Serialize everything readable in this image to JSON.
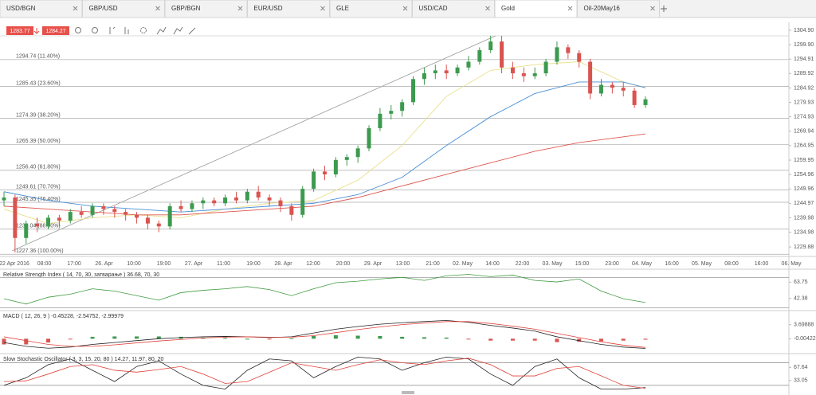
{
  "tabs": [
    "USD/BGN",
    "GBP/USD",
    "GBP/BGN",
    "EUR/USD",
    "GLE",
    "USD/CAD",
    "Gold",
    "Oil-20May16"
  ],
  "active_tab": 6,
  "toolbar": {
    "sell_price": "1283.77",
    "buy_price": "1284.27"
  },
  "price_chart": {
    "ylim": [
      1226.6,
      1307.1
    ],
    "yticks": [
      {
        "value": 1304.9,
        "label": "1304.90"
      },
      {
        "value": 1299.9,
        "label": "1299.90"
      },
      1294.91,
      1289.92,
      1284.92,
      1279.93,
      1274.93,
      1269.94,
      1264.95,
      1259.95,
      1254.96,
      1249.96,
      1244.97,
      1239.98,
      1234.98,
      1229.88
    ],
    "fib_levels": [
      {
        "value": 1294.74,
        "label": "1294.74 (11.40%)"
      },
      {
        "value": 1285.43,
        "label": "1285.43 (23.60%)"
      },
      {
        "value": 1274.39,
        "label": "1274.39 (38.20%)"
      },
      {
        "value": 1265.39,
        "label": "1265.39 (50.00%)"
      },
      {
        "value": 1256.4,
        "label": "1256.40 (61.80%)"
      },
      {
        "value": 1249.61,
        "label": "1249.61 (70.70%)"
      },
      {
        "value": 1245.35,
        "label": "1245.35 (76.40%)"
      },
      {
        "value": 1236.04,
        "label": "1236.04 (88.60%)"
      },
      {
        "value": 1227.36,
        "label": "1227.36 (100.00%)"
      }
    ],
    "up_color": "#3c9a4e",
    "down_color": "#d9534f",
    "candles": [
      [
        1246,
        1249,
        1244,
        1247
      ],
      [
        1247,
        1248,
        1228,
        1233
      ],
      [
        1233,
        1239,
        1231,
        1238
      ],
      [
        1238,
        1240,
        1235,
        1237
      ],
      [
        1237,
        1241,
        1236,
        1240
      ],
      [
        1240,
        1241,
        1237,
        1239
      ],
      [
        1239,
        1243,
        1238,
        1242
      ],
      [
        1242,
        1244,
        1240,
        1241
      ],
      [
        1241,
        1245,
        1240,
        1244
      ],
      [
        1244,
        1245,
        1241,
        1243
      ],
      [
        1243,
        1244,
        1240,
        1242
      ],
      [
        1242,
        1243,
        1239,
        1241
      ],
      [
        1241,
        1242,
        1238,
        1240
      ],
      [
        1240,
        1241,
        1236,
        1238
      ],
      [
        1238,
        1239,
        1235,
        1237
      ],
      [
        1237,
        1245,
        1236,
        1244
      ],
      [
        1244,
        1246,
        1242,
        1243
      ],
      [
        1243,
        1246,
        1242,
        1245
      ],
      [
        1245,
        1247,
        1243,
        1246
      ],
      [
        1246,
        1247,
        1244,
        1245
      ],
      [
        1245,
        1248,
        1244,
        1247
      ],
      [
        1247,
        1249,
        1245,
        1246
      ],
      [
        1246,
        1250,
        1245,
        1249
      ],
      [
        1249,
        1251,
        1246,
        1247
      ],
      [
        1247,
        1248,
        1244,
        1246
      ],
      [
        1246,
        1247,
        1242,
        1244
      ],
      [
        1244,
        1245,
        1239,
        1241
      ],
      [
        1241,
        1251,
        1240,
        1250
      ],
      [
        1250,
        1257,
        1249,
        1256
      ],
      [
        1256,
        1258,
        1253,
        1255
      ],
      [
        1255,
        1261,
        1254,
        1260
      ],
      [
        1260,
        1262,
        1258,
        1261
      ],
      [
        1261,
        1265,
        1259,
        1264
      ],
      [
        1264,
        1272,
        1263,
        1271
      ],
      [
        1271,
        1278,
        1270,
        1276
      ],
      [
        1276,
        1279,
        1274,
        1277
      ],
      [
        1277,
        1281,
        1275,
        1280
      ],
      [
        1280,
        1289,
        1279,
        1288
      ],
      [
        1288,
        1292,
        1286,
        1290
      ],
      [
        1290,
        1293,
        1288,
        1291
      ],
      [
        1291,
        1293,
        1288,
        1290
      ],
      [
        1290,
        1293,
        1289,
        1292
      ],
      [
        1292,
        1296,
        1291,
        1294
      ],
      [
        1294,
        1299,
        1293,
        1298
      ],
      [
        1298,
        1303,
        1297,
        1301
      ],
      [
        1301,
        1303,
        1290,
        1292
      ],
      [
        1292,
        1294,
        1288,
        1290
      ],
      [
        1290,
        1292,
        1287,
        1289
      ],
      [
        1289,
        1292,
        1288,
        1290
      ],
      [
        1290,
        1295,
        1289,
        1294
      ],
      [
        1294,
        1301,
        1293,
        1299
      ],
      [
        1299,
        1300,
        1295,
        1297
      ],
      [
        1297,
        1298,
        1292,
        1294
      ],
      [
        1294,
        1295,
        1281,
        1283
      ],
      [
        1283,
        1288,
        1282,
        1286
      ],
      [
        1286,
        1287,
        1283,
        1285
      ],
      [
        1285,
        1287,
        1282,
        1284
      ],
      [
        1284,
        1285,
        1278,
        1279
      ],
      [
        1279,
        1282,
        1278,
        1281
      ]
    ],
    "ma_x": [
      0,
      4,
      8,
      12,
      16,
      20,
      24,
      28,
      32,
      36,
      40,
      44,
      48,
      52,
      56,
      58
    ],
    "moving_averages": [
      {
        "color": "#e8e08a",
        "values": [
          1243,
          1238,
          1240,
          1241,
          1240,
          1243,
          1245,
          1246,
          1253,
          1265,
          1282,
          1291,
          1293,
          1294,
          1287,
          1285
        ]
      },
      {
        "color": "#4a8fd6",
        "values": [
          1249,
          1246,
          1244,
          1243,
          1242,
          1243,
          1244,
          1245,
          1248,
          1254,
          1265,
          1275,
          1283,
          1287,
          1287,
          1285
        ]
      },
      {
        "color": "#e0574f",
        "values": [
          1244,
          1243,
          1242,
          1241,
          1241,
          1242,
          1243,
          1244,
          1247,
          1251,
          1255,
          1259,
          1263,
          1266,
          1268,
          1269
        ]
      }
    ],
    "x_labels": [
      "22 Apr 2016",
      "08:00",
      "17:00",
      "26. Apr",
      "10:00",
      "19:00",
      "27. Apr",
      "11:00",
      "19:00",
      "28. Apr",
      "12:00",
      "20:00",
      "29. Apr",
      "13:00",
      "21:00",
      "02. May",
      "14:00",
      "22:00",
      "03. May",
      "15:00",
      "23:00",
      "04. May",
      "16:00",
      "05. May",
      "08:00",
      "16:00",
      "06. May"
    ]
  },
  "indicators": [
    {
      "title": "Relative Strength Index ( 14, 70, 30, затварање ) 36.68, 70, 30",
      "ylim": [
        28.5,
        78.7
      ],
      "yticks": [
        63.75,
        42.38
      ],
      "levels": [
        70,
        30
      ],
      "series": [
        {
          "color": "#3f9a3f",
          "values": [
            42,
            35,
            44,
            48,
            55,
            52,
            46,
            40,
            50,
            53,
            55,
            58,
            54,
            46,
            55,
            63,
            65,
            68,
            70,
            66,
            72,
            74,
            71,
            73,
            66,
            64,
            68,
            52,
            42,
            37
          ]
        }
      ]
    },
    {
      "title": "MACD ( 12, 26, 9 ) -0.45228, -2.54752, -2.99979",
      "ylim": [
        -3.49,
        6.97
      ],
      "yticks": [
        3.69888,
        -0.00422
      ],
      "histogram": [
        -1.5,
        -1.5,
        -1,
        -0.2,
        0.5,
        0.6,
        0.6,
        0.6,
        0.5,
        0.3,
        0.2,
        0,
        -0.1,
        0.1,
        0.7,
        0.9,
        0.8,
        0.7,
        0.5,
        0.4,
        0.3,
        -0.2,
        -0.5,
        -0.5,
        -0.5,
        -0.9,
        -0.8,
        -0.7,
        -0.5,
        -0.25
      ],
      "series": [
        {
          "color": "#222222",
          "values": [
            -1,
            -2,
            -2.5,
            -2.2,
            -1.5,
            -1,
            -0.5,
            0,
            0.3,
            0.5,
            0.6,
            0.5,
            0.3,
            0.5,
            1.5,
            2.5,
            3.2,
            3.8,
            4.2,
            4.5,
            4.8,
            4.3,
            3.5,
            2.8,
            2,
            0.5,
            -0.5,
            -1.5,
            -2.2,
            -2.55
          ]
        },
        {
          "color": "#e0413a",
          "values": [
            0.5,
            -0.5,
            -1.5,
            -2,
            -2,
            -1.6,
            -1.1,
            -0.6,
            -0.2,
            0.2,
            0.4,
            0.5,
            0.4,
            0.4,
            0.8,
            1.6,
            2.4,
            3.1,
            3.7,
            4.1,
            4.5,
            4.5,
            4,
            3.3,
            2.5,
            1.4,
            0.3,
            -0.8,
            -1.7,
            -2.3
          ]
        }
      ]
    },
    {
      "title": "Slow Stochastic Oscillator ( 3, 3, 15, 20, 80 ) 14.27, 11.97, 80, 20",
      "ylim": [
        2.8,
        100.1
      ],
      "yticks": [
        67.64,
        33.05
      ],
      "levels": [
        80,
        20
      ],
      "series": [
        {
          "color": "#222222",
          "values": [
            20,
            40,
            75,
            90,
            60,
            30,
            70,
            85,
            50,
            20,
            10,
            60,
            90,
            85,
            40,
            70,
            95,
            90,
            60,
            80,
            95,
            90,
            50,
            20,
            70,
            90,
            40,
            10,
            10,
            14
          ]
        },
        {
          "color": "#e0413a",
          "values": [
            30,
            32,
            50,
            70,
            75,
            60,
            55,
            62,
            70,
            50,
            25,
            30,
            55,
            80,
            70,
            60,
            75,
            88,
            80,
            75,
            85,
            92,
            75,
            45,
            45,
            65,
            70,
            45,
            20,
            12
          ]
        }
      ]
    }
  ]
}
